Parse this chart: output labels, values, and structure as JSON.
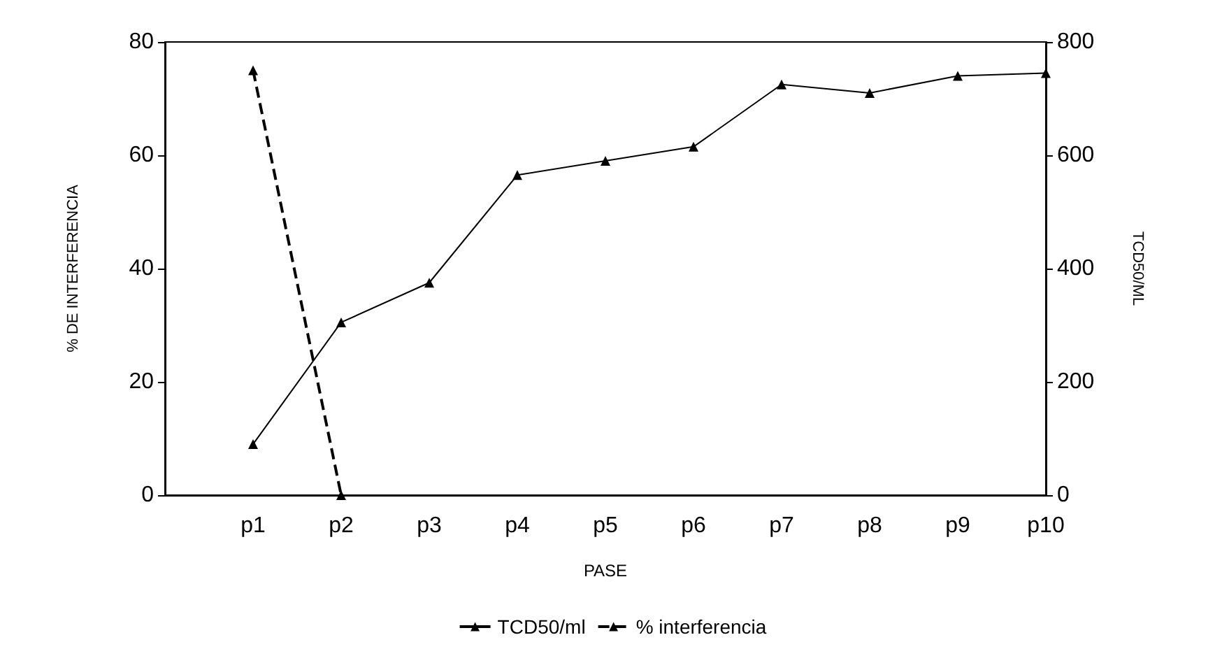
{
  "chart_data": {
    "type": "line",
    "xlabel": "PASE",
    "ylabel": "% DE INTERFERENCIA",
    "y2label": "TCD50/ML",
    "categories": [
      null,
      "p1",
      "p2",
      "p3",
      "p4",
      "p5",
      "p6",
      "p7",
      "p8",
      "p9",
      "p10"
    ],
    "series": [
      {
        "name": "TCD50/ml",
        "color": "#000000",
        "axis": "y2",
        "line_style": "solid",
        "values": [
          null,
          90,
          305,
          375,
          565,
          590,
          615,
          725,
          710,
          740,
          745
        ]
      },
      {
        "name": "% interferencia",
        "color": "#000000",
        "axis": "y",
        "line_style": "dashed",
        "values": [
          null,
          75,
          0,
          null,
          null,
          null,
          null,
          null,
          null,
          null,
          null
        ]
      }
    ],
    "ylim": [
      0,
      80
    ],
    "yticks": [
      0,
      20,
      40,
      60,
      80
    ],
    "y2lim": [
      0,
      800
    ],
    "y2ticks": [
      0,
      200,
      400,
      600,
      800
    ],
    "grid": false,
    "legend": "bottom",
    "marker": "triangle"
  }
}
